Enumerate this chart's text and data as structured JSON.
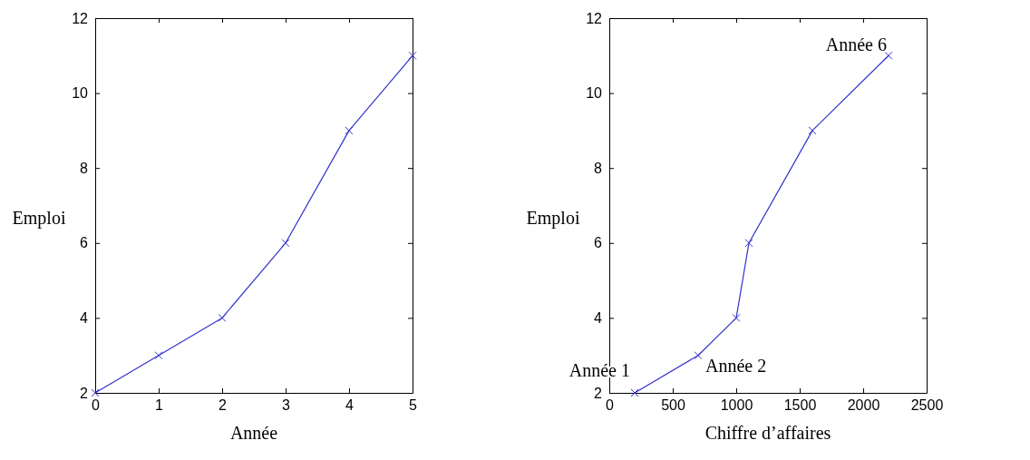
{
  "chart_data": [
    {
      "type": "line",
      "xlabel": "Année",
      "ylabel": "Emploi",
      "x": [
        0,
        1,
        2,
        3,
        4,
        5
      ],
      "series": [
        {
          "color": "#3333cc",
          "values": [
            2,
            3,
            4,
            6,
            9,
            11
          ]
        }
      ],
      "xlim": [
        0,
        5
      ],
      "xticks": [
        0,
        1,
        2,
        3,
        4,
        5
      ],
      "ylim": [
        2,
        12
      ],
      "yticks": [
        2,
        4,
        6,
        8,
        10,
        12
      ],
      "marker": "cross"
    },
    {
      "type": "line",
      "xlabel": "Chiffre d’affaires",
      "ylabel": "Emploi",
      "x": [
        200,
        700,
        1000,
        1100,
        1600,
        2200
      ],
      "series": [
        {
          "color": "#3333cc",
          "values": [
            2,
            3,
            4,
            6,
            9,
            11
          ]
        }
      ],
      "xlim": [
        0,
        2500
      ],
      "xticks": [
        0,
        500,
        1000,
        1500,
        2000,
        2500
      ],
      "ylim": [
        2,
        12
      ],
      "yticks": [
        2,
        4,
        6,
        8,
        10,
        12
      ],
      "marker": "cross",
      "annotations": [
        {
          "text": "Année 1",
          "x": 200,
          "y": 2
        },
        {
          "text": "Année 2",
          "x": 700,
          "y": 3
        },
        {
          "text": "Année 6",
          "x": 2200,
          "y": 11
        }
      ]
    }
  ]
}
